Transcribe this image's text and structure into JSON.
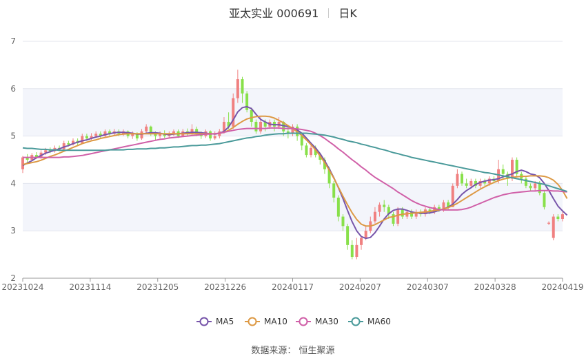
{
  "title": {
    "name": "亚太实业 000691",
    "period": "日K"
  },
  "source": "数据来源： 恒生聚源",
  "chart_data": {
    "type": "candlestick",
    "ylim": [
      2,
      7
    ],
    "yticks": [
      2,
      3,
      4,
      5,
      6,
      7
    ],
    "xtick_labels": [
      "20231024",
      "20231114",
      "20231205",
      "20231226",
      "20240117",
      "20240207",
      "20240307",
      "20240328",
      "20240419"
    ],
    "colors": {
      "up": "#f08080",
      "down": "#88e04a",
      "ma5": "#7755aa",
      "ma10": "#dd9944",
      "ma30": "#d060a8",
      "ma60": "#4a9a9a"
    },
    "candles": [
      [
        4.3,
        4.55,
        4.58,
        4.22
      ],
      [
        4.55,
        4.5,
        4.62,
        4.45
      ],
      [
        4.5,
        4.6,
        4.64,
        4.48
      ],
      [
        4.6,
        4.55,
        4.66,
        4.52
      ],
      [
        4.55,
        4.65,
        4.7,
        4.52
      ],
      [
        4.65,
        4.7,
        4.75,
        4.6
      ],
      [
        4.7,
        4.68,
        4.76,
        4.64
      ],
      [
        4.68,
        4.75,
        4.8,
        4.65
      ],
      [
        4.75,
        4.72,
        4.8,
        4.68
      ],
      [
        4.72,
        4.85,
        4.9,
        4.7
      ],
      [
        4.85,
        4.82,
        4.9,
        4.78
      ],
      [
        4.82,
        4.9,
        4.95,
        4.8
      ],
      [
        4.9,
        4.85,
        4.95,
        4.8
      ],
      [
        4.85,
        5.0,
        5.05,
        4.84
      ],
      [
        5.0,
        4.95,
        5.05,
        4.9
      ],
      [
        4.95,
        5.0,
        5.06,
        4.92
      ],
      [
        5.0,
        5.05,
        5.1,
        4.96
      ],
      [
        5.05,
        5.0,
        5.1,
        4.96
      ],
      [
        5.0,
        5.1,
        5.14,
        4.98
      ],
      [
        5.1,
        5.05,
        5.14,
        5.0
      ],
      [
        5.05,
        5.1,
        5.15,
        5.02
      ],
      [
        5.1,
        5.05,
        5.14,
        5.0
      ],
      [
        5.05,
        5.1,
        5.14,
        5.0
      ],
      [
        5.1,
        5.0,
        5.12,
        4.95
      ],
      [
        5.0,
        5.05,
        5.1,
        4.94
      ],
      [
        5.05,
        4.95,
        5.08,
        4.9
      ],
      [
        4.95,
        5.1,
        5.15,
        4.92
      ],
      [
        5.1,
        5.2,
        5.25,
        5.05
      ],
      [
        5.2,
        5.05,
        5.22,
        5.0
      ],
      [
        5.05,
        5.0,
        5.1,
        4.9
      ],
      [
        5.0,
        5.05,
        5.1,
        4.95
      ],
      [
        5.05,
        5.0,
        5.12,
        4.96
      ],
      [
        5.0,
        5.05,
        5.1,
        4.96
      ],
      [
        5.05,
        5.1,
        5.14,
        5.0
      ],
      [
        5.1,
        5.0,
        5.14,
        4.96
      ],
      [
        5.0,
        5.1,
        5.15,
        4.98
      ],
      [
        5.1,
        5.05,
        5.16,
        5.0
      ],
      [
        5.05,
        5.15,
        5.25,
        5.02
      ],
      [
        5.15,
        5.05,
        5.2,
        5.0
      ],
      [
        5.05,
        5.0,
        5.1,
        4.94
      ],
      [
        5.0,
        5.1,
        5.14,
        4.96
      ],
      [
        5.1,
        4.95,
        5.12,
        4.9
      ],
      [
        4.95,
        5.0,
        5.1,
        4.92
      ],
      [
        5.0,
        5.1,
        5.15,
        4.95
      ],
      [
        5.1,
        5.3,
        5.4,
        5.05
      ],
      [
        5.3,
        5.2,
        5.5,
        5.15
      ],
      [
        5.2,
        5.8,
        5.9,
        5.15
      ],
      [
        5.8,
        6.2,
        6.4,
        5.7
      ],
      [
        6.2,
        5.9,
        6.25,
        5.7
      ],
      [
        5.9,
        5.55,
        5.95,
        5.5
      ],
      [
        5.55,
        5.3,
        5.6,
        5.2
      ],
      [
        5.3,
        5.1,
        5.35,
        5.05
      ],
      [
        5.1,
        5.3,
        5.4,
        5.05
      ],
      [
        5.3,
        5.2,
        5.35,
        5.1
      ],
      [
        5.2,
        5.3,
        5.35,
        5.15
      ],
      [
        5.3,
        5.2,
        5.35,
        5.1
      ],
      [
        5.2,
        5.3,
        5.4,
        5.15
      ],
      [
        5.3,
        5.1,
        5.32,
        5.0
      ],
      [
        5.1,
        5.05,
        5.2,
        4.95
      ],
      [
        5.05,
        5.2,
        5.25,
        5.0
      ],
      [
        5.2,
        5.0,
        5.25,
        4.9
      ],
      [
        5.0,
        4.8,
        5.05,
        4.7
      ],
      [
        4.8,
        4.6,
        4.85,
        4.55
      ],
      [
        4.6,
        4.75,
        4.8,
        4.55
      ],
      [
        4.75,
        4.6,
        4.8,
        4.55
      ],
      [
        4.6,
        4.5,
        4.65,
        4.4
      ],
      [
        4.5,
        4.3,
        4.55,
        4.2
      ],
      [
        4.3,
        4.0,
        4.35,
        3.9
      ],
      [
        4.0,
        3.7,
        4.05,
        3.6
      ],
      [
        3.7,
        3.3,
        3.75,
        3.2
      ],
      [
        3.3,
        3.1,
        3.35,
        3.0
      ],
      [
        3.1,
        2.7,
        3.15,
        2.6
      ],
      [
        2.7,
        2.45,
        2.8,
        2.4
      ],
      [
        2.45,
        2.7,
        2.85,
        2.4
      ],
      [
        2.7,
        2.85,
        2.9,
        2.6
      ],
      [
        2.85,
        3.0,
        3.1,
        2.8
      ],
      [
        3.0,
        3.2,
        3.3,
        2.95
      ],
      [
        3.2,
        3.4,
        3.5,
        3.15
      ],
      [
        3.4,
        3.55,
        3.6,
        3.3
      ],
      [
        3.55,
        3.5,
        3.65,
        3.4
      ],
      [
        3.5,
        3.35,
        3.55,
        3.25
      ],
      [
        3.35,
        3.15,
        3.4,
        3.1
      ],
      [
        3.15,
        3.45,
        3.5,
        3.1
      ],
      [
        3.45,
        3.3,
        3.5,
        3.25
      ],
      [
        3.3,
        3.4,
        3.45,
        3.25
      ],
      [
        3.4,
        3.3,
        3.45,
        3.25
      ],
      [
        3.3,
        3.4,
        3.45,
        3.25
      ],
      [
        3.4,
        3.35,
        3.45,
        3.3
      ],
      [
        3.35,
        3.45,
        3.5,
        3.3
      ],
      [
        3.45,
        3.4,
        3.5,
        3.35
      ],
      [
        3.4,
        3.5,
        3.55,
        3.35
      ],
      [
        3.5,
        3.45,
        3.55,
        3.4
      ],
      [
        3.45,
        3.6,
        3.65,
        3.4
      ],
      [
        3.6,
        3.5,
        3.65,
        3.45
      ],
      [
        3.5,
        3.95,
        4.0,
        3.5
      ],
      [
        3.95,
        4.2,
        4.3,
        3.9
      ],
      [
        4.2,
        4.0,
        4.25,
        3.95
      ],
      [
        4.0,
        3.95,
        4.1,
        3.9
      ],
      [
        3.95,
        4.05,
        4.1,
        3.9
      ],
      [
        4.05,
        3.95,
        4.1,
        3.9
      ],
      [
        3.95,
        4.05,
        4.1,
        3.9
      ],
      [
        4.05,
        4.0,
        4.1,
        3.95
      ],
      [
        4.0,
        4.1,
        4.15,
        3.95
      ],
      [
        4.1,
        4.05,
        4.15,
        4.0
      ],
      [
        4.05,
        4.3,
        4.5,
        4.0
      ],
      [
        4.3,
        4.2,
        4.4,
        4.1
      ],
      [
        4.2,
        4.1,
        4.25,
        3.95
      ],
      [
        4.1,
        4.5,
        4.55,
        4.05
      ],
      [
        4.5,
        4.2,
        4.55,
        4.15
      ],
      [
        4.2,
        4.1,
        4.25,
        4.0
      ],
      [
        4.1,
        3.95,
        4.15,
        3.9
      ],
      [
        3.95,
        3.9,
        4.0,
        3.85
      ],
      [
        3.9,
        4.0,
        4.05,
        3.85
      ],
      [
        4.0,
        3.8,
        4.05,
        3.75
      ],
      [
        3.8,
        3.5,
        3.85,
        3.45
      ],
      [
        3.15,
        3.17,
        3.2,
        3.12
      ],
      [
        2.85,
        3.3,
        3.35,
        2.8
      ],
      [
        3.3,
        3.25,
        3.35,
        3.2
      ],
      [
        3.25,
        3.35,
        3.4,
        3.2
      ]
    ],
    "series": [
      {
        "name": "MA5",
        "values": [
          4.38,
          4.43,
          4.48,
          4.54,
          4.59,
          4.64,
          4.67,
          4.7,
          4.73,
          4.77,
          4.8,
          4.84,
          4.87,
          4.9,
          4.92,
          4.95,
          4.98,
          5.0,
          5.03,
          5.05,
          5.07,
          5.08,
          5.08,
          5.07,
          5.06,
          5.04,
          5.04,
          5.06,
          5.07,
          5.07,
          5.06,
          5.04,
          5.03,
          5.04,
          5.05,
          5.06,
          5.07,
          5.08,
          5.08,
          5.07,
          5.06,
          5.05,
          5.04,
          5.06,
          5.1,
          5.19,
          5.34,
          5.51,
          5.6,
          5.62,
          5.58,
          5.46,
          5.35,
          5.3,
          5.25,
          5.24,
          5.24,
          5.22,
          5.2,
          5.17,
          5.13,
          5.06,
          4.96,
          4.85,
          4.75,
          4.63,
          4.48,
          4.31,
          4.12,
          3.91,
          3.68,
          3.43,
          3.19,
          3.0,
          2.88,
          2.84,
          2.86,
          2.96,
          3.1,
          3.25,
          3.36,
          3.43,
          3.46,
          3.46,
          3.43,
          3.4,
          3.38,
          3.37,
          3.37,
          3.38,
          3.4,
          3.43,
          3.46,
          3.5,
          3.56,
          3.66,
          3.77,
          3.85,
          3.91,
          3.98,
          4.02,
          4.05,
          4.07,
          4.08,
          4.1,
          4.14,
          4.17,
          4.2,
          4.25,
          4.28,
          4.25,
          4.2,
          4.18,
          4.12,
          4.0,
          3.85,
          3.68,
          3.52,
          3.42,
          3.33
        ]
      },
      {
        "name": "MA10",
        "values": [
          4.4,
          4.42,
          4.44,
          4.46,
          4.49,
          4.53,
          4.57,
          4.6,
          4.64,
          4.68,
          4.72,
          4.76,
          4.8,
          4.84,
          4.87,
          4.9,
          4.92,
          4.95,
          4.97,
          4.99,
          5.01,
          5.03,
          5.04,
          5.05,
          5.05,
          5.05,
          5.05,
          5.05,
          5.05,
          5.05,
          5.05,
          5.05,
          5.05,
          5.05,
          5.05,
          5.05,
          5.05,
          5.05,
          5.05,
          5.05,
          5.05,
          5.05,
          5.05,
          5.06,
          5.08,
          5.12,
          5.18,
          5.25,
          5.31,
          5.36,
          5.39,
          5.41,
          5.42,
          5.42,
          5.41,
          5.38,
          5.33,
          5.28,
          5.22,
          5.16,
          5.09,
          5.01,
          4.92,
          4.82,
          4.71,
          4.58,
          4.44,
          4.28,
          4.11,
          3.92,
          3.73,
          3.55,
          3.38,
          3.24,
          3.14,
          3.1,
          3.1,
          3.13,
          3.18,
          3.23,
          3.28,
          3.3,
          3.33,
          3.35,
          3.36,
          3.37,
          3.38,
          3.39,
          3.4,
          3.41,
          3.43,
          3.44,
          3.46,
          3.49,
          3.53,
          3.58,
          3.64,
          3.7,
          3.76,
          3.82,
          3.88,
          3.93,
          3.98,
          4.02,
          4.06,
          4.09,
          4.11,
          4.13,
          4.14,
          4.15,
          4.15,
          4.16,
          4.16,
          4.16,
          4.15,
          4.12,
          4.07,
          3.98,
          3.85,
          3.68
        ]
      },
      {
        "name": "MA30",
        "values": [
          4.55,
          4.55,
          4.55,
          4.55,
          4.55,
          4.55,
          4.55,
          4.55,
          4.55,
          4.56,
          4.56,
          4.57,
          4.58,
          4.59,
          4.61,
          4.63,
          4.65,
          4.67,
          4.69,
          4.71,
          4.73,
          4.75,
          4.77,
          4.79,
          4.81,
          4.83,
          4.85,
          4.87,
          4.89,
          4.91,
          4.93,
          4.94,
          4.96,
          4.97,
          4.98,
          4.99,
          5.0,
          5.01,
          5.02,
          5.03,
          5.04,
          5.04,
          5.05,
          5.06,
          5.08,
          5.1,
          5.12,
          5.14,
          5.15,
          5.16,
          5.16,
          5.16,
          5.16,
          5.16,
          5.17,
          5.17,
          5.17,
          5.16,
          5.16,
          5.16,
          5.15,
          5.14,
          5.12,
          5.1,
          5.06,
          5.01,
          4.95,
          4.88,
          4.81,
          4.73,
          4.66,
          4.58,
          4.5,
          4.43,
          4.35,
          4.28,
          4.2,
          4.13,
          4.07,
          4.01,
          3.95,
          3.89,
          3.82,
          3.76,
          3.7,
          3.64,
          3.59,
          3.55,
          3.52,
          3.49,
          3.47,
          3.45,
          3.44,
          3.44,
          3.44,
          3.44,
          3.45,
          3.47,
          3.5,
          3.54,
          3.58,
          3.62,
          3.66,
          3.7,
          3.73,
          3.76,
          3.78,
          3.8,
          3.81,
          3.82,
          3.83,
          3.84,
          3.84,
          3.85,
          3.85,
          3.85,
          3.84,
          3.84,
          3.83,
          3.82
        ]
      },
      {
        "name": "MA60",
        "values": [
          4.75,
          4.74,
          4.74,
          4.73,
          4.72,
          4.72,
          4.71,
          4.71,
          4.7,
          4.7,
          4.7,
          4.7,
          4.7,
          4.7,
          4.7,
          4.7,
          4.7,
          4.7,
          4.7,
          4.71,
          4.71,
          4.71,
          4.71,
          4.72,
          4.72,
          4.73,
          4.73,
          4.73,
          4.74,
          4.74,
          4.75,
          4.75,
          4.76,
          4.77,
          4.77,
          4.78,
          4.79,
          4.8,
          4.8,
          4.81,
          4.81,
          4.82,
          4.83,
          4.84,
          4.86,
          4.88,
          4.9,
          4.92,
          4.94,
          4.96,
          4.97,
          4.99,
          5.0,
          5.02,
          5.03,
          5.04,
          5.05,
          5.05,
          5.06,
          5.06,
          5.06,
          5.06,
          5.06,
          5.05,
          5.04,
          5.03,
          5.02,
          5.0,
          4.98,
          4.95,
          4.93,
          4.9,
          4.88,
          4.86,
          4.83,
          4.81,
          4.78,
          4.76,
          4.73,
          4.71,
          4.68,
          4.65,
          4.63,
          4.6,
          4.58,
          4.55,
          4.53,
          4.51,
          4.49,
          4.47,
          4.45,
          4.43,
          4.41,
          4.39,
          4.37,
          4.35,
          4.33,
          4.31,
          4.29,
          4.27,
          4.25,
          4.23,
          4.22,
          4.2,
          4.18,
          4.16,
          4.14,
          4.12,
          4.1,
          4.08,
          4.06,
          4.04,
          4.02,
          4.0,
          3.98,
          3.95,
          3.92,
          3.89,
          3.86,
          3.83
        ]
      }
    ]
  }
}
